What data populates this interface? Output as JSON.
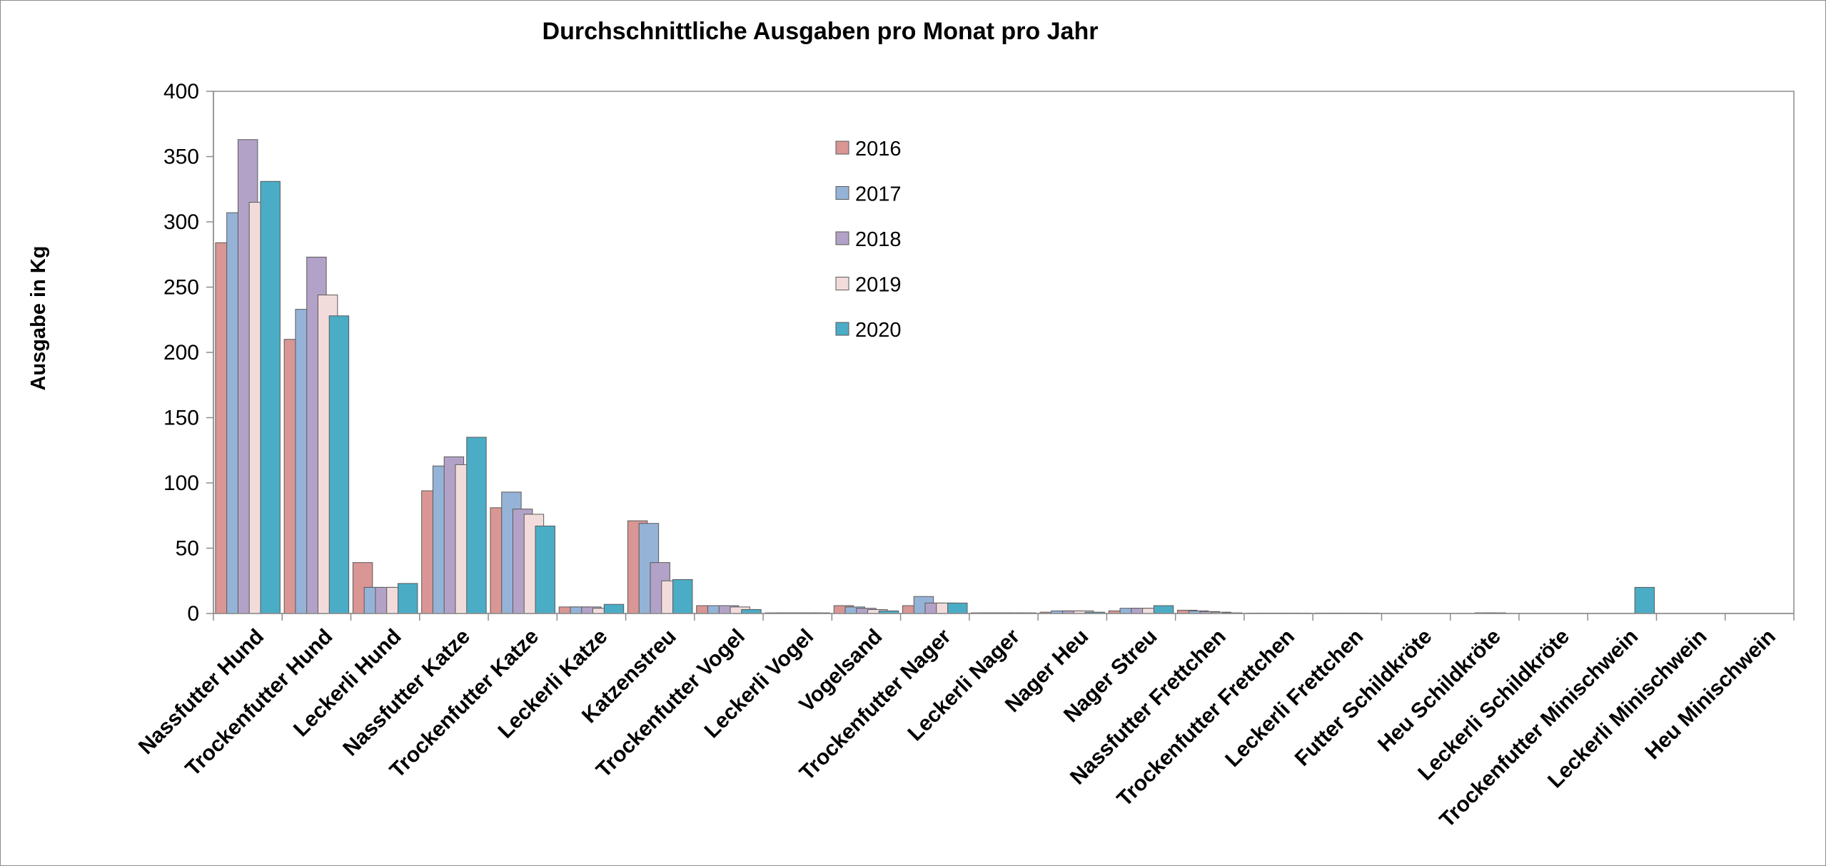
{
  "chart_data": {
    "type": "bar",
    "title": "Durchschnittliche Ausgaben pro Monat pro Jahr",
    "xlabel": "",
    "ylabel": "Ausgabe in Kg",
    "ylim": [
      0,
      400
    ],
    "yticks": [
      "0",
      "50",
      "100",
      "150",
      "200",
      "250",
      "300",
      "350",
      "400"
    ],
    "grid": false,
    "legend_position": "top-center",
    "categories": [
      "Nassfutter Hund",
      "Trockenfutter Hund",
      "Leckerli Hund",
      "Nassfutter Katze",
      "Trockenfutter Katze",
      "Leckerli Katze",
      "Katzenstreu",
      "Trockenfutter Vogel",
      "Leckerli Vogel",
      "Vogelsand",
      "Trockenfutter Nager",
      "Leckerli Nager",
      "Nager Heu",
      "Nager Streu",
      "Nassfutter Frettchen",
      "Trockenfutter Frettchen",
      "Leckerli Frettchen",
      "Futter Schildkröte",
      "Heu Schildkröte",
      "Leckerli Schildkröte",
      "Trockenfutter Minischwein",
      "Leckerli Minischwein",
      "Heu Minischwein"
    ],
    "series": [
      {
        "name": "2016",
        "color": "#d99694",
        "values": [
          284,
          210,
          39,
          94,
          81,
          5,
          71,
          6,
          0.5,
          6,
          6,
          0.5,
          1,
          2,
          2.5,
          0.3,
          0.3,
          0,
          0,
          0,
          0,
          0,
          0
        ]
      },
      {
        "name": "2017",
        "color": "#95b3d7",
        "values": [
          307,
          233,
          20,
          113,
          93,
          5,
          69,
          6,
          0.5,
          5,
          13,
          0.5,
          2,
          4,
          2,
          0.3,
          0.3,
          0,
          0,
          0,
          0,
          0,
          0
        ]
      },
      {
        "name": "2018",
        "color": "#b3a2c7",
        "values": [
          363,
          273,
          20,
          120,
          80,
          5,
          39,
          6,
          0.5,
          4,
          8,
          0.5,
          2,
          4,
          1.5,
          0.3,
          0.3,
          0,
          0.5,
          0,
          0,
          0,
          0
        ]
      },
      {
        "name": "2019",
        "color": "#f2dcdb",
        "values": [
          315,
          244,
          20,
          114,
          76,
          4,
          25,
          5,
          0.5,
          3,
          8,
          0.5,
          2,
          4,
          1,
          0.3,
          0.3,
          0,
          0.5,
          0,
          0,
          0,
          0
        ]
      },
      {
        "name": "2020",
        "color": "#4bacc6",
        "values": [
          331,
          228,
          23,
          135,
          67,
          7,
          26,
          3,
          0.5,
          2,
          8,
          0.5,
          1,
          6,
          0.5,
          0.3,
          0.3,
          0,
          0,
          0,
          20,
          0,
          0
        ]
      }
    ]
  }
}
